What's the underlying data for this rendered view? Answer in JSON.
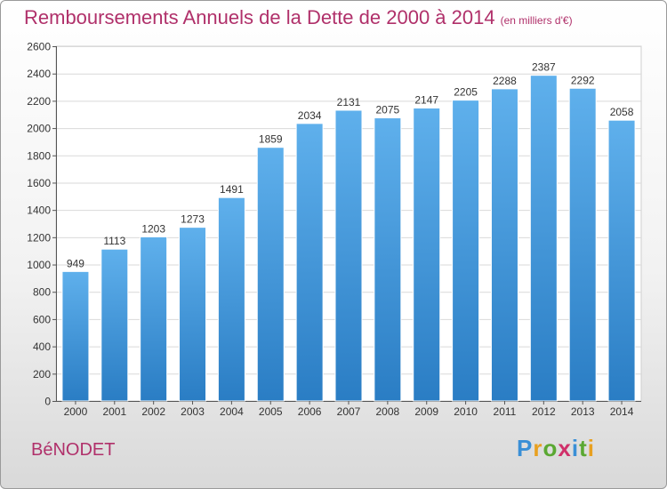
{
  "title": "Remboursements Annuels de la Dette de 2000 à 2014",
  "subtitle": "(en milliers d'€)",
  "town": "BéNODET",
  "logo": {
    "text": "Proxiti",
    "letters": [
      {
        "ch": "P",
        "color": "#3a8fd6"
      },
      {
        "ch": "r",
        "color": "#e8a020"
      },
      {
        "ch": "o",
        "color": "#5aa832"
      },
      {
        "ch": "x",
        "color": "#d0306a"
      },
      {
        "ch": "i",
        "color": "#3a8fd6"
      },
      {
        "ch": "t",
        "color": "#5aa832"
      },
      {
        "ch": "i",
        "color": "#e8a020"
      }
    ]
  },
  "colors": {
    "bar_light": "#5fb0ec",
    "bar_dark": "#2a7dc4",
    "title": "#b0306a",
    "grid": "#d9d9d9"
  },
  "chart_data": {
    "type": "bar",
    "title": "Remboursements Annuels de la Dette de 2000 à 2014",
    "subtitle": "(en milliers d'€)",
    "categories": [
      "2000",
      "2001",
      "2002",
      "2003",
      "2004",
      "2005",
      "2006",
      "2007",
      "2008",
      "2009",
      "2010",
      "2011",
      "2012",
      "2013",
      "2014"
    ],
    "values": [
      949,
      1113,
      1203,
      1273,
      1491,
      1859,
      2034,
      2131,
      2075,
      2147,
      2205,
      2288,
      2387,
      2292,
      2058
    ],
    "ylim": [
      0,
      2600
    ],
    "yticks": [
      0,
      200,
      400,
      600,
      800,
      1000,
      1200,
      1400,
      1600,
      1800,
      2000,
      2200,
      2400,
      2600
    ],
    "xlabel": "",
    "ylabel": "",
    "grid": true
  }
}
